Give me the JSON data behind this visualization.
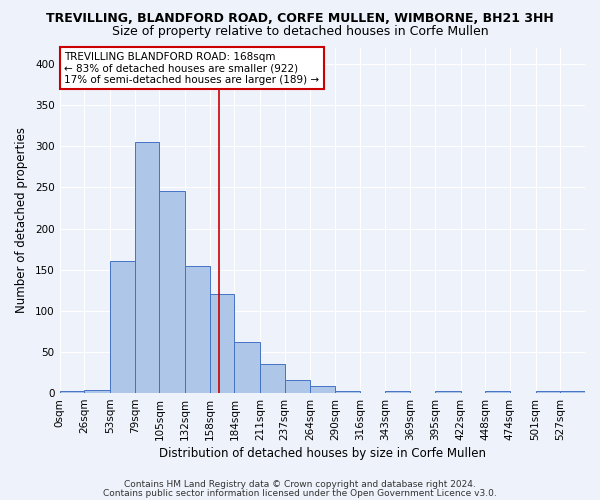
{
  "title1": "TREVILLING, BLANDFORD ROAD, CORFE MULLEN, WIMBORNE, BH21 3HH",
  "title2": "Size of property relative to detached houses in Corfe Mullen",
  "xlabel": "Distribution of detached houses by size in Corfe Mullen",
  "ylabel": "Number of detached properties",
  "footnote1": "Contains HM Land Registry data © Crown copyright and database right 2024.",
  "footnote2": "Contains public sector information licensed under the Open Government Licence v3.0.",
  "bin_labels": [
    "0sqm",
    "26sqm",
    "53sqm",
    "79sqm",
    "105sqm",
    "132sqm",
    "158sqm",
    "184sqm",
    "211sqm",
    "237sqm",
    "264sqm",
    "290sqm",
    "316sqm",
    "343sqm",
    "369sqm",
    "395sqm",
    "422sqm",
    "448sqm",
    "474sqm",
    "501sqm",
    "527sqm"
  ],
  "bin_edges": [
    0,
    26,
    53,
    79,
    105,
    132,
    158,
    184,
    211,
    237,
    264,
    290,
    316,
    343,
    369,
    395,
    422,
    448,
    474,
    501,
    527,
    553
  ],
  "bar_heights": [
    2,
    4,
    160,
    305,
    245,
    155,
    120,
    62,
    35,
    16,
    9,
    3,
    0,
    3,
    0,
    3,
    0,
    2,
    0,
    2,
    2
  ],
  "bar_color": "#aec6e8",
  "bar_edge_color": "#4472c4",
  "vline_x": 168,
  "vline_color": "#cc0000",
  "ylim": [
    0,
    420
  ],
  "yticks": [
    0,
    50,
    100,
    150,
    200,
    250,
    300,
    350,
    400
  ],
  "bg_color": "#eef2fa",
  "grid_color": "#ffffff",
  "annotation_text": "TREVILLING BLANDFORD ROAD: 168sqm\n← 83% of detached houses are smaller (922)\n17% of semi-detached houses are larger (189) →",
  "annotation_box_color": "#ffffff",
  "annotation_box_edge": "#cc0000",
  "title1_fontsize": 9,
  "title2_fontsize": 9,
  "xlabel_fontsize": 8.5,
  "ylabel_fontsize": 8.5,
  "tick_fontsize": 7.5,
  "annotation_fontsize": 7.5,
  "footnote_fontsize": 6.5
}
